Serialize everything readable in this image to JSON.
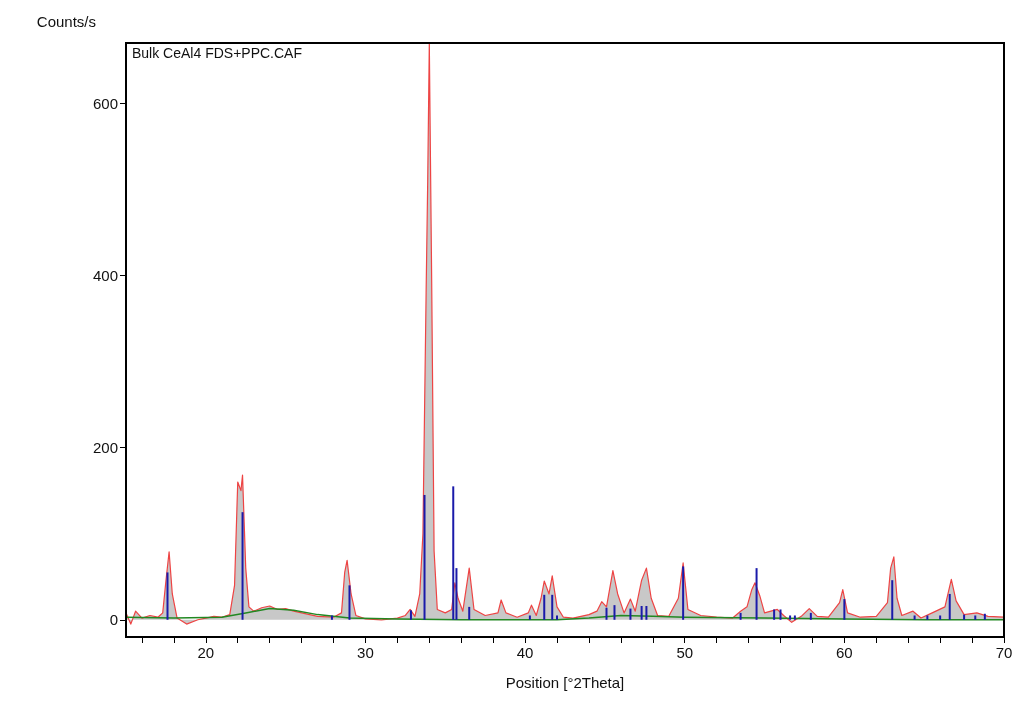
{
  "chart_data": {
    "type": "area",
    "xlabel": "Position [°2Theta]",
    "ylabel": "Counts/s",
    "annotations": [
      "Bulk CeAl4 FDS+PPC.CAF"
    ],
    "xlim": [
      15,
      70
    ],
    "xticks": [
      {
        "value": 16,
        "label": null
      },
      {
        "value": 18,
        "label": null
      },
      20,
      {
        "value": 22,
        "label": null
      },
      {
        "value": 24,
        "label": null
      },
      {
        "value": 26,
        "label": null
      },
      {
        "value": 28,
        "label": null
      },
      30,
      {
        "value": 32,
        "label": null
      },
      {
        "value": 34,
        "label": null
      },
      {
        "value": 36,
        "label": null
      },
      {
        "value": 38,
        "label": null
      },
      40,
      {
        "value": 42,
        "label": null
      },
      {
        "value": 44,
        "label": null
      },
      {
        "value": 46,
        "label": null
      },
      {
        "value": 48,
        "label": null
      },
      50,
      {
        "value": 52,
        "label": null
      },
      {
        "value": 54,
        "label": null
      },
      {
        "value": 56,
        "label": null
      },
      {
        "value": 58,
        "label": null
      },
      60,
      {
        "value": 62,
        "label": null
      },
      {
        "value": 64,
        "label": null
      },
      {
        "value": 66,
        "label": null
      },
      {
        "value": 68,
        "label": null
      },
      70
    ],
    "ylim": [
      -20,
      670
    ],
    "yticks": [
      0,
      200,
      400,
      600
    ],
    "grid": false,
    "series": [
      {
        "color": "#ee4444",
        "x": [
          15,
          15.3,
          15.6,
          16,
          16.5,
          17,
          17.3,
          17.5,
          17.7,
          17.9,
          18.2,
          18.8,
          19.5,
          20,
          20.5,
          21,
          21.5,
          21.8,
          22.0,
          22.2,
          22.3,
          22.5,
          22.7,
          23,
          23.5,
          24,
          24.5,
          25,
          25.5,
          26,
          27,
          28,
          28.5,
          28.7,
          28.85,
          29.1,
          29.4,
          30,
          31,
          32,
          32.5,
          32.8,
          33.1,
          33.4,
          33.6,
          33.8,
          33.9,
          34.0,
          34.15,
          34.3,
          34.5,
          35,
          35.4,
          35.6,
          35.8,
          36.1,
          36.5,
          36.8,
          37.5,
          38.3,
          38.5,
          38.8,
          39.5,
          40.2,
          40.4,
          40.7,
          41.0,
          41.2,
          41.5,
          41.7,
          42.0,
          42.4,
          43,
          44,
          44.5,
          44.8,
          45.1,
          45.5,
          45.8,
          46.2,
          46.6,
          46.9,
          47.3,
          47.6,
          47.9,
          48.3,
          49,
          49.6,
          49.9,
          50.2,
          51,
          52,
          53,
          53.5,
          53.9,
          54.2,
          54.4,
          54.7,
          55.0,
          55.8,
          56.2,
          56.7,
          57.3,
          57.8,
          58.3,
          59,
          59.7,
          59.9,
          60.2,
          61,
          62,
          62.7,
          62.9,
          63.1,
          63.3,
          63.6,
          64.3,
          64.8,
          65.5,
          66.3,
          66.7,
          67,
          67.5,
          68.3,
          69,
          70
        ],
        "values": [
          8,
          -5,
          10,
          2,
          5,
          3,
          8,
          45,
          79,
          30,
          2,
          -5,
          0,
          2,
          4,
          3,
          6,
          40,
          160,
          150,
          168,
          60,
          15,
          10,
          14,
          16,
          12,
          13,
          10,
          8,
          4,
          3,
          8,
          55,
          69,
          30,
          5,
          1,
          0,
          2,
          5,
          12,
          4,
          30,
          100,
          380,
          510,
          670,
          390,
          80,
          12,
          8,
          12,
          43,
          25,
          10,
          60,
          12,
          5,
          8,
          23,
          8,
          3,
          8,
          17,
          5,
          25,
          45,
          30,
          51,
          15,
          3,
          2,
          6,
          10,
          21,
          15,
          57,
          30,
          8,
          24,
          10,
          46,
          60,
          25,
          5,
          4,
          25,
          66,
          12,
          5,
          3,
          2,
          10,
          15,
          35,
          43,
          28,
          8,
          12,
          5,
          -3,
          4,
          13,
          4,
          3,
          20,
          35,
          8,
          3,
          4,
          20,
          60,
          73,
          25,
          5,
          10,
          2,
          8,
          15,
          47,
          22,
          6,
          8,
          4,
          3
        ]
      },
      {
        "type": "line",
        "color": "#228822",
        "x": [
          15,
          18,
          21,
          22.5,
          24,
          25.5,
          27,
          29,
          32,
          36,
          40,
          42,
          44,
          46,
          48,
          50,
          55,
          60,
          65,
          70
        ],
        "values": [
          3,
          2,
          3,
          8,
          13,
          11,
          6,
          2,
          1,
          0,
          0,
          0,
          2,
          5,
          4,
          3,
          2,
          1,
          0,
          0
        ]
      },
      {
        "type": "bar",
        "color": "#1a1aaa",
        "x": [
          17.6,
          22.3,
          27.9,
          29.0,
          32.85,
          33.7,
          35.5,
          35.7,
          36.5,
          40.3,
          41.2,
          41.7,
          42.0,
          45.1,
          45.6,
          46.6,
          47.3,
          47.6,
          49.9,
          53.5,
          54.5,
          55.6,
          56.0,
          56.6,
          56.9,
          57.9,
          60.0,
          63.0,
          64.4,
          65.2,
          66.0,
          66.6,
          67.5,
          68.2,
          68.8
        ],
        "values": [
          55,
          125,
          5,
          40,
          11,
          145,
          155,
          60,
          15,
          5,
          29,
          29,
          5,
          14,
          17,
          13,
          16,
          16,
          62,
          8,
          60,
          12,
          12,
          5,
          5,
          8,
          24,
          46,
          5,
          5,
          5,
          30,
          6,
          5,
          7
        ]
      }
    ]
  }
}
